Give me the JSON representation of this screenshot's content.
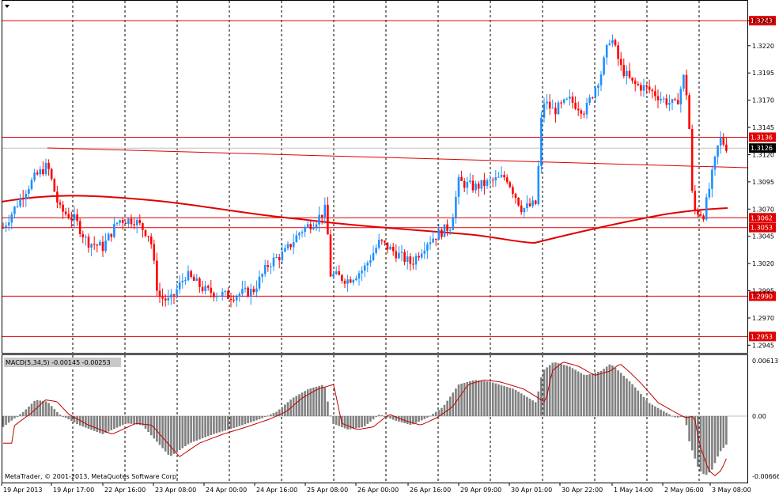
{
  "chart_data": [
    {
      "type": "candlestick",
      "y_ticks": [
        "1.3243",
        "1.3220",
        "1.3195",
        "1.3170",
        "1.3145",
        "1.3120",
        "1.3095",
        "1.3070",
        "1.3045",
        "1.3020",
        "1.2995",
        "1.2970",
        "1.2945"
      ],
      "ylim": [
        1.2938,
        1.3262
      ],
      "horizontal_levels": [
        {
          "value": 1.3243,
          "label": "1.3243"
        },
        {
          "value": 1.3136,
          "label": "1.3136"
        },
        {
          "value": 1.3062,
          "label": "1.3062"
        },
        {
          "value": 1.3053,
          "label": "1.3053"
        },
        {
          "value": 1.299,
          "label": "1.2990"
        },
        {
          "value": 1.2953,
          "label": "1.2953"
        }
      ],
      "current_price": {
        "value": 1.3126,
        "label": "1.3126"
      },
      "x_ticks": [
        "19 Apr 2013",
        "19 Apr 17:00",
        "22 Apr 16:00",
        "23 Apr 08:00",
        "24 Apr 00:00",
        "24 Apr 16:00",
        "25 Apr 08:00",
        "26 Apr 00:00",
        "26 Apr 16:00",
        "29 Apr 09:00",
        "30 Apr 01:00",
        "30 Apr 22:00",
        "1 May 14:00",
        "2 May 06:00",
        "3 May 08:00"
      ],
      "bull_color": "#1e90ff",
      "bear_color": "#ff0000",
      "line_color": "#e00000"
    },
    {
      "type": "bar",
      "title": "MACD(5,34,5) -0.00145 -0.00253",
      "y_ticks": [
        "0.00613",
        "0.00",
        "-0.00666"
      ],
      "ylim": [
        -0.00666,
        0.00613
      ],
      "bar_color": "#808080",
      "signal_color": "#c00000"
    }
  ],
  "footer": {
    "copyright": "MetaTrader, © 2001-2013, MetaQuotes Software Corp."
  },
  "header": {
    "menu_icon": "triangle-down-icon"
  }
}
